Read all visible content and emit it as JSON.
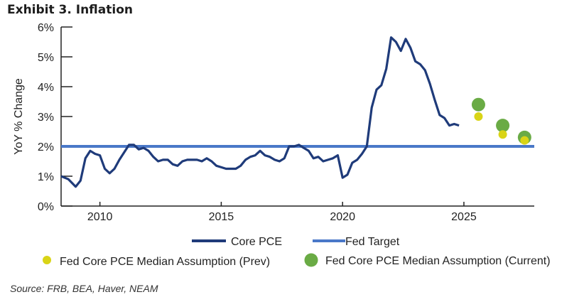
{
  "header": {
    "title": "Exhibit 3. Inflation"
  },
  "footer": {
    "source": "Source: FRB, BEA, Haver, NEAM"
  },
  "colors": {
    "core_pce": "#1f3b7a",
    "fed_target": "#4a78c8",
    "median_prev": "#d9d416",
    "median_current": "#6aab45",
    "axis": "#222222"
  },
  "chart_data": {
    "type": "line",
    "ylabel": "YoY % Change",
    "ylim": [
      0,
      6
    ],
    "xlim": [
      2008.4,
      2027.9
    ],
    "y_ticks": [
      0,
      1,
      2,
      3,
      4,
      5,
      6
    ],
    "y_tick_labels": [
      "0%",
      "1%",
      "2%",
      "3%",
      "4%",
      "5%",
      "6%"
    ],
    "x_ticks": [
      2010,
      2015,
      2020,
      2025
    ],
    "x_tick_labels": [
      "2010",
      "2015",
      "2020",
      "2025"
    ],
    "grid": false,
    "legend_placement": "bottom",
    "series": [
      {
        "name": "Core PCE",
        "style": "line",
        "x": [
          2008.4,
          2008.7,
          2009.0,
          2009.2,
          2009.4,
          2009.6,
          2009.8,
          2010.0,
          2010.2,
          2010.4,
          2010.6,
          2010.8,
          2011.0,
          2011.2,
          2011.4,
          2011.6,
          2011.8,
          2012.0,
          2012.2,
          2012.4,
          2012.6,
          2012.8,
          2013.0,
          2013.2,
          2013.4,
          2013.6,
          2013.8,
          2014.0,
          2014.2,
          2014.4,
          2014.6,
          2014.8,
          2015.0,
          2015.2,
          2015.4,
          2015.6,
          2015.8,
          2016.0,
          2016.2,
          2016.4,
          2016.6,
          2016.8,
          2017.0,
          2017.2,
          2017.4,
          2017.6,
          2017.8,
          2018.0,
          2018.2,
          2018.4,
          2018.6,
          2018.8,
          2019.0,
          2019.2,
          2019.4,
          2019.6,
          2019.8,
          2020.0,
          2020.2,
          2020.4,
          2020.6,
          2020.8,
          2021.0,
          2021.2,
          2021.4,
          2021.6,
          2021.8,
          2022.0,
          2022.2,
          2022.4,
          2022.6,
          2022.8,
          2023.0,
          2023.2,
          2023.4,
          2023.6,
          2023.8,
          2024.0,
          2024.2,
          2024.4,
          2024.6,
          2024.8
        ],
        "values": [
          1.0,
          0.9,
          0.65,
          0.85,
          1.6,
          1.85,
          1.75,
          1.7,
          1.25,
          1.1,
          1.25,
          1.55,
          1.8,
          2.05,
          2.05,
          1.9,
          1.95,
          1.85,
          1.65,
          1.5,
          1.55,
          1.55,
          1.4,
          1.35,
          1.5,
          1.55,
          1.55,
          1.55,
          1.5,
          1.6,
          1.5,
          1.35,
          1.3,
          1.25,
          1.25,
          1.25,
          1.35,
          1.55,
          1.65,
          1.7,
          1.85,
          1.7,
          1.65,
          1.55,
          1.5,
          1.6,
          2.0,
          2.0,
          2.05,
          1.95,
          1.85,
          1.6,
          1.65,
          1.5,
          1.55,
          1.6,
          1.7,
          0.95,
          1.05,
          1.45,
          1.55,
          1.75,
          2.0,
          3.3,
          3.9,
          4.05,
          4.6,
          5.65,
          5.5,
          5.2,
          5.6,
          5.3,
          4.85,
          4.75,
          4.55,
          4.1,
          3.55,
          3.05,
          2.95,
          2.7,
          2.75,
          2.7
        ]
      },
      {
        "name": "Fed Target",
        "style": "hline",
        "value": 2.0
      },
      {
        "name": "Fed Core PCE Median Assumption (Prev)",
        "style": "points",
        "x": [
          2025.6,
          2026.6,
          2027.5
        ],
        "values": [
          3.0,
          2.4,
          2.2
        ]
      },
      {
        "name": "Fed Core PCE Median Assumption (Current)",
        "style": "points",
        "x": [
          2025.6,
          2026.6,
          2027.5
        ],
        "values": [
          3.4,
          2.7,
          2.3
        ]
      }
    ]
  }
}
